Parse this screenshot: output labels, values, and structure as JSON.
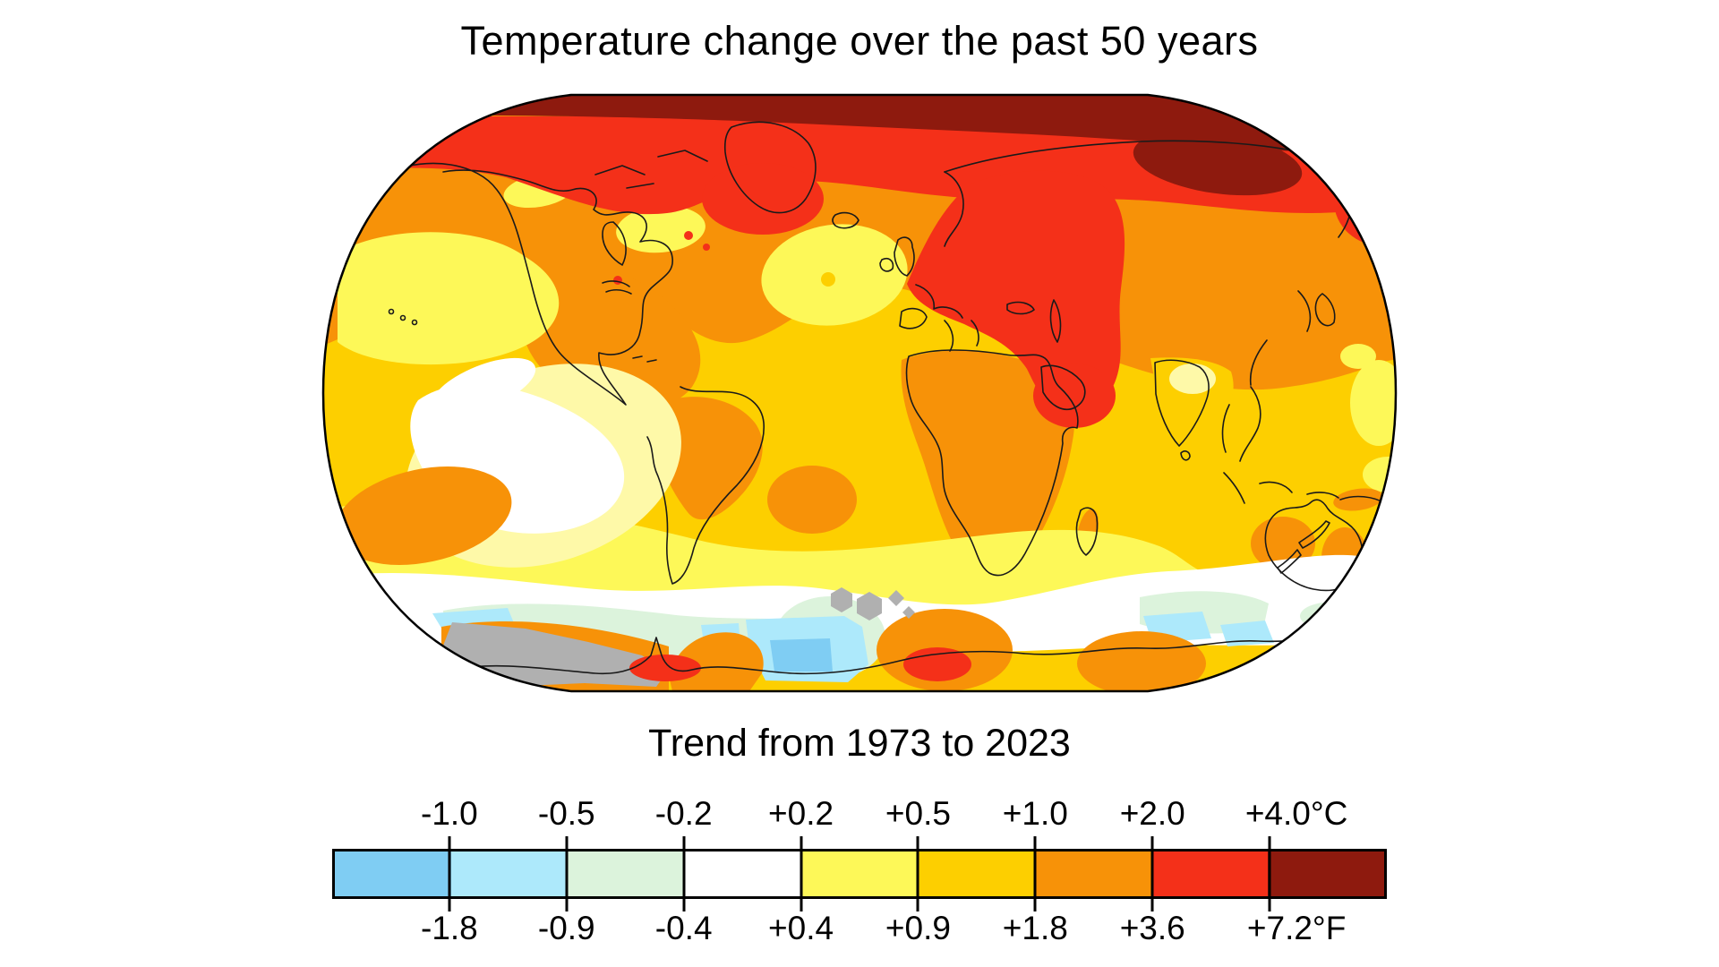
{
  "figure": {
    "title": "Temperature change over the past 50 years",
    "subtitle": "Trend from 1973 to 2023"
  },
  "map": {
    "projection": "Robinson world map",
    "features": [
      "Arctic band shows strongest warming, above +4.0°C (dark red)",
      "High northern latitudes, Europe, western Siberia and Arabia show +2.0 to +4.0°C (red)",
      "Most continents show +1.0 to +2.0°C (orange)",
      "Tropical and mid-latitude oceans mostly +0.5 to +1.0°C (gold)",
      "Southeast Pacific and parts of the Southern Ocean near zero change (white)",
      "Patches of slight cooling (pale green / blue) along the Antarctic coast",
      "Gray patches near Antarctica indicate no data"
    ]
  },
  "legend": {
    "units_top": "°C",
    "units_bottom": "°F",
    "segments": [
      {
        "name": "cooling-strong",
        "color": "#7FCDF3"
      },
      {
        "name": "cooling-mild",
        "color": "#ADE9FB"
      },
      {
        "name": "cooling-slight",
        "color": "#DCF3DC"
      },
      {
        "name": "neutral",
        "color": "#FFFFFF"
      },
      {
        "name": "warming-slight",
        "color": "#FDF858"
      },
      {
        "name": "warming-mild",
        "color": "#FDCF00"
      },
      {
        "name": "warming",
        "color": "#F79208"
      },
      {
        "name": "warming-strong",
        "color": "#F43019"
      },
      {
        "name": "warming-extreme",
        "color": "#8E1A0E"
      }
    ],
    "ticks_celsius": [
      "-1.0",
      "-0.5",
      "-0.2",
      "+0.2",
      "+0.5",
      "+1.0",
      "+2.0",
      "+4.0°C"
    ],
    "ticks_fahrenheit": [
      "-1.8",
      "-0.9",
      "-0.4",
      "+0.4",
      "+0.9",
      "+1.8",
      "+3.6",
      "+7.2°F"
    ]
  },
  "palette": {
    "cool_strong": "#7FCDF3",
    "cool_mild": "#ADE9FB",
    "cool_slight": "#DCF3DC",
    "neutral": "#FFFFFF",
    "warm_slight": "#FDF858",
    "warm_mild": "#FDCF00",
    "warm": "#F79208",
    "warm_strong": "#F43019",
    "warm_extreme": "#8E1A0E",
    "no_data": "#B0B0B0",
    "pale_yellow_fringe": "#FEF9A8",
    "coastline": "#1A1A1A",
    "map_border": "#000000",
    "text": "#000000"
  }
}
